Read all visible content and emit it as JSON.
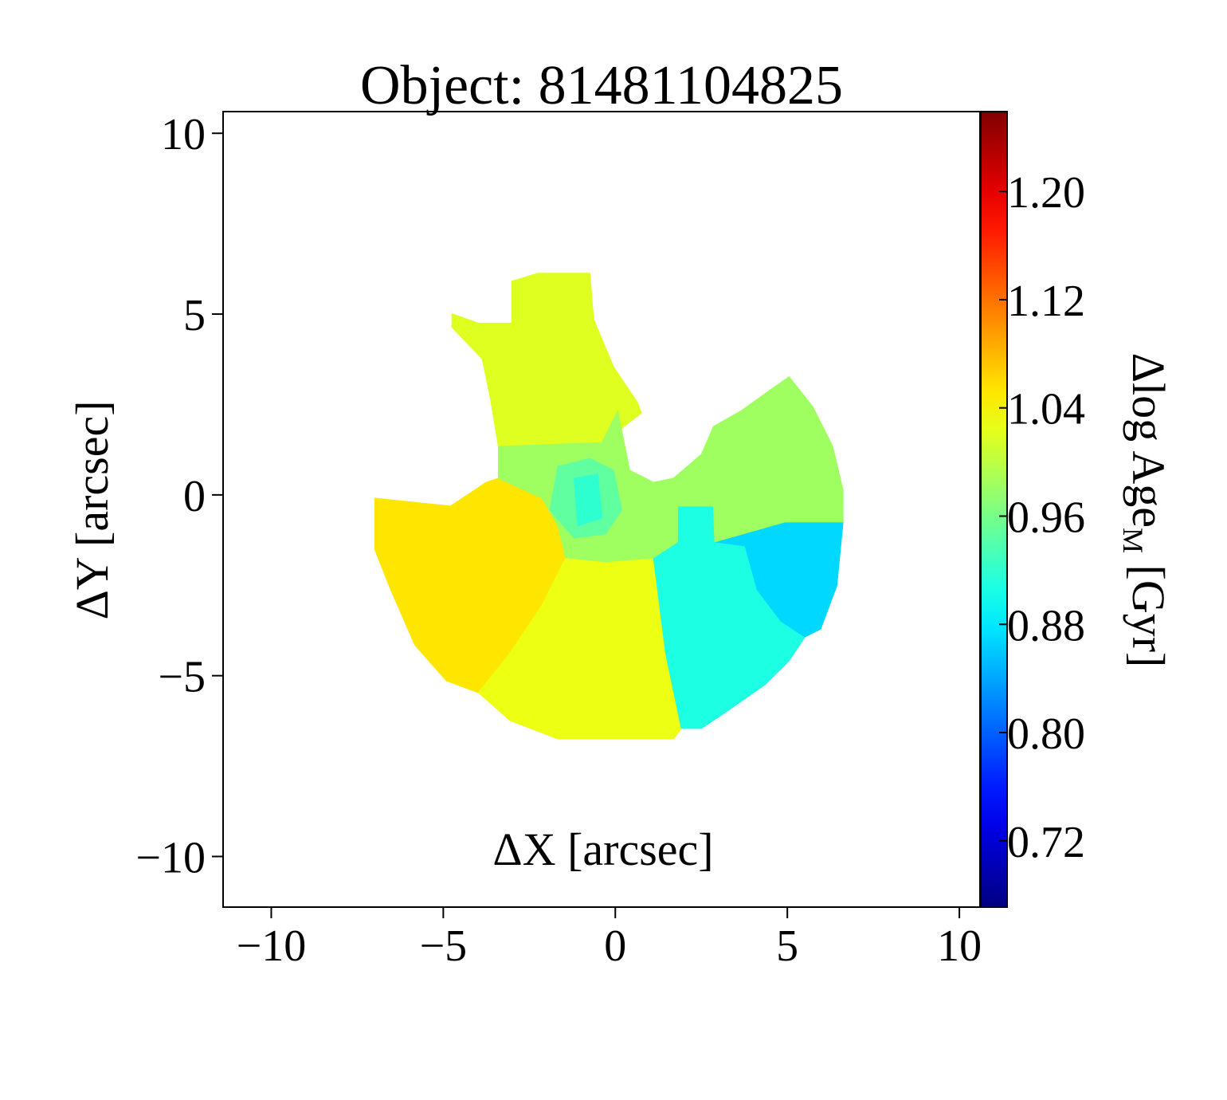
{
  "chart_data": {
    "type": "map",
    "title": "Object: 81481104825",
    "x_label": "ΔX [arcsec]",
    "y_label": "ΔY [arcsec]",
    "colorbar_label": {
      "main": "Δlog Age",
      "sub": "M",
      "unit": " [Gyr]"
    },
    "colormap": "jet",
    "xlim": [
      -11.4,
      10.6
    ],
    "ylim": [
      -11.4,
      10.6
    ],
    "xticks": [
      {
        "value": -10,
        "label": "−10"
      },
      {
        "value": -5,
        "label": "−5"
      },
      0,
      5,
      10
    ],
    "yticks": [
      {
        "value": -10,
        "label": "−10"
      },
      {
        "value": -5,
        "label": "−5"
      },
      0,
      5,
      10
    ],
    "clim": [
      0.671,
      1.259
    ],
    "cticks": [
      0.72,
      {
        "value": 0.8,
        "label": "0.80"
      },
      0.88,
      0.96,
      1.04,
      1.12,
      {
        "value": 1.2,
        "label": "1.20"
      }
    ],
    "regions": [
      {
        "value": 1.02,
        "polygon": [
          [
            -4.75,
            5.01
          ],
          [
            -3.98,
            4.75
          ],
          [
            -3.01,
            4.75
          ],
          [
            -3.01,
            5.91
          ],
          [
            -2.25,
            6.13
          ],
          [
            -0.74,
            6.13
          ],
          [
            -0.63,
            4.86
          ],
          [
            -0.05,
            3.54
          ],
          [
            0.65,
            2.55
          ],
          [
            0.76,
            2.26
          ],
          [
            -0.05,
            1.67
          ],
          [
            -0.39,
            1.45
          ],
          [
            -3.4,
            1.34
          ],
          [
            -3.63,
            2.66
          ],
          [
            -3.87,
            3.76
          ],
          [
            -4.75,
            4.64
          ]
        ]
      },
      {
        "value": 1.053,
        "polygon": [
          [
            -6.99,
            -0.09
          ],
          [
            -4.79,
            -0.31
          ],
          [
            -3.75,
            0.35
          ],
          [
            -3.4,
            0.46
          ],
          [
            -2.13,
            -0.09
          ],
          [
            -1.67,
            -0.86
          ],
          [
            -1.44,
            -1.74
          ],
          [
            -2.13,
            -3.05
          ],
          [
            -3.06,
            -4.37
          ],
          [
            -3.98,
            -5.47
          ],
          [
            -4.91,
            -5.14
          ],
          [
            -5.83,
            -4.15
          ],
          [
            -6.53,
            -2.62
          ],
          [
            -6.99,
            -1.52
          ]
        ]
      },
      {
        "value": 1.028,
        "polygon": [
          [
            -1.44,
            -1.74
          ],
          [
            -0.28,
            -1.85
          ],
          [
            1.11,
            -1.74
          ],
          [
            1.46,
            -4.37
          ],
          [
            1.92,
            -6.46
          ],
          [
            1.69,
            -6.75
          ],
          [
            -1.67,
            -6.75
          ],
          [
            -3.06,
            -6.24
          ],
          [
            -3.98,
            -5.47
          ],
          [
            -3.06,
            -4.37
          ],
          [
            -2.13,
            -3.05
          ]
        ]
      },
      {
        "value": 0.908,
        "polygon": [
          [
            1.11,
            -1.74
          ],
          [
            1.81,
            -1.3
          ],
          [
            1.81,
            -0.31
          ],
          [
            2.85,
            -0.31
          ],
          [
            2.89,
            -1.3
          ],
          [
            3.77,
            -1.41
          ],
          [
            4.12,
            -2.62
          ],
          [
            4.81,
            -3.49
          ],
          [
            5.51,
            -3.93
          ],
          [
            5.05,
            -4.59
          ],
          [
            4.35,
            -5.25
          ],
          [
            3.19,
            -6.02
          ],
          [
            2.5,
            -6.46
          ],
          [
            1.92,
            -6.46
          ],
          [
            1.46,
            -4.37
          ]
        ]
      },
      {
        "value": 0.869,
        "polygon": [
          [
            2.89,
            -1.3
          ],
          [
            4.93,
            -0.75
          ],
          [
            6.62,
            -0.75
          ],
          [
            6.44,
            -2.51
          ],
          [
            5.97,
            -3.71
          ],
          [
            5.51,
            -3.93
          ],
          [
            4.81,
            -3.49
          ],
          [
            4.12,
            -2.62
          ],
          [
            3.77,
            -1.41
          ]
        ]
      },
      {
        "value": 0.983,
        "polygon": [
          [
            1.81,
            -0.31
          ],
          [
            1.69,
            0.46
          ],
          [
            2.5,
            1.12
          ],
          [
            2.85,
            1.89
          ],
          [
            3.66,
            2.33
          ],
          [
            4.47,
            2.88
          ],
          [
            5.05,
            3.27
          ],
          [
            5.74,
            2.44
          ],
          [
            6.32,
            1.34
          ],
          [
            6.62,
            0.13
          ],
          [
            6.62,
            -0.75
          ],
          [
            4.93,
            -0.75
          ],
          [
            2.89,
            -1.3
          ],
          [
            2.85,
            -0.31
          ]
        ]
      },
      {
        "value": 0.983,
        "polygon": [
          [
            -3.4,
            1.34
          ],
          [
            -0.39,
            1.45
          ],
          [
            0.07,
            2.33
          ],
          [
            0.42,
            0.68
          ],
          [
            1.11,
            0.35
          ],
          [
            1.69,
            0.46
          ],
          [
            1.81,
            -0.31
          ],
          [
            1.81,
            -1.3
          ],
          [
            1.11,
            -1.74
          ],
          [
            -0.28,
            -1.85
          ],
          [
            -1.44,
            -1.74
          ],
          [
            -1.67,
            -0.86
          ],
          [
            -2.13,
            -0.09
          ],
          [
            -3.4,
            0.46
          ]
        ]
      },
      {
        "value": 0.947,
        "polygon": [
          [
            -1.67,
            0.79
          ],
          [
            -0.74,
            1.01
          ],
          [
            -0.05,
            0.68
          ],
          [
            0.19,
            -0.42
          ],
          [
            -0.28,
            -1.08
          ],
          [
            -1.2,
            -1.19
          ],
          [
            -1.9,
            -0.42
          ]
        ]
      },
      {
        "value": 0.918,
        "polygon": [
          [
            -1.2,
            0.46
          ],
          [
            -0.51,
            0.57
          ],
          [
            -0.39,
            -0.64
          ],
          [
            -1.09,
            -0.86
          ]
        ]
      }
    ]
  }
}
